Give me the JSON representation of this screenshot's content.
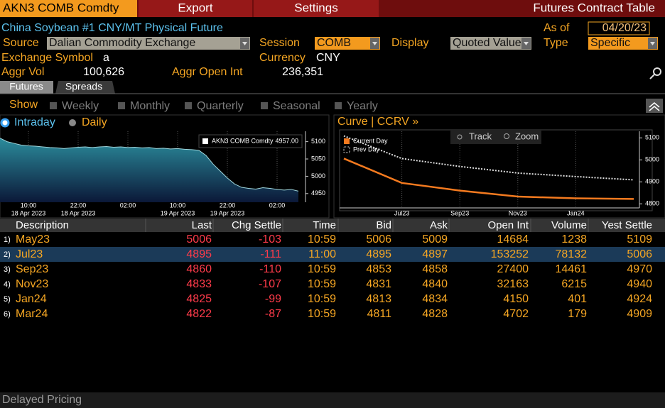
{
  "header": {
    "ticker": "AKN3 COMB Comdty",
    "menu": [
      "Export",
      "Settings"
    ],
    "title": "Futures Contract Table"
  },
  "security": {
    "name": "China Soybean #1 CNY/MT Physical Future",
    "as_of_label": "As of",
    "as_of": "04/20/23"
  },
  "fields": {
    "source_label": "Source",
    "source": "Dalian Commodity Exchange",
    "session_label": "Session",
    "session": "COMB",
    "display_label": "Display",
    "display": "Quoted Value",
    "type_label": "Type",
    "type": "Specific",
    "exchange_symbol_label": "Exchange Symbol",
    "exchange_symbol": "a",
    "currency_label": "Currency",
    "currency": "CNY",
    "aggr_vol_label": "Aggr Vol",
    "aggr_vol": "100,626",
    "aggr_oi_label": "Aggr Open Int",
    "aggr_oi": "236,351"
  },
  "tabs": [
    "Futures",
    "Spreads"
  ],
  "show": {
    "label": "Show",
    "options": [
      "Weekly",
      "Monthly",
      "Quarterly",
      "Seasonal",
      "Yearly"
    ]
  },
  "modes": [
    "Intraday",
    "Daily"
  ],
  "intraday_chart": {
    "type": "area",
    "legend_name": "AKN3 COMB Comdty",
    "legend_value_label": "4957.00",
    "values": [
      5110,
      5100,
      5095,
      5090,
      5088,
      5087,
      5085,
      5083,
      5082,
      5080,
      5082,
      5084,
      5085,
      5083,
      5085,
      5086,
      5084,
      5085,
      5083,
      5084,
      5082,
      5083,
      5080,
      5081,
      5079,
      5080,
      5078,
      5077,
      5075,
      5060,
      5035,
      5015,
      4995,
      4978,
      4968,
      4965,
      4963,
      4967,
      4965,
      4962,
      4960,
      4962,
      4957
    ],
    "ylim": [
      4925,
      5130
    ],
    "yticks": [
      4950,
      5000,
      5050,
      5100
    ],
    "xticks": [
      {
        "value": 4,
        "label": "10:00",
        "date": "18 Apr 2023"
      },
      {
        "value": 11,
        "label": "22:00",
        "date": "18 Apr 2023"
      },
      {
        "value": 18,
        "label": "02:00"
      },
      {
        "value": 25,
        "label": "10:00",
        "date": "19 Apr 2023"
      },
      {
        "value": 32,
        "label": "22:00",
        "date": "19 Apr 2023"
      },
      {
        "value": 39,
        "label": "02:00"
      }
    ]
  },
  "curve_chart": {
    "type": "line",
    "title": "Curve | CCRV »",
    "buttons": [
      "Track",
      "Zoom"
    ],
    "xlim": [
      0,
      5
    ],
    "xticks": [
      {
        "value": 1,
        "label": "Jul23"
      },
      {
        "value": 2,
        "label": "Sep23"
      },
      {
        "value": 3,
        "label": "Nov23"
      },
      {
        "value": 4,
        "label": "Jan24"
      }
    ],
    "ylim": [
      4775,
      5130
    ],
    "yticks": [
      4800,
      4900,
      5000,
      5100
    ],
    "series": [
      {
        "name": "Current Day",
        "color": "#f47a1f",
        "values": [
          5006,
          4895,
          4860,
          4833,
          4825,
          4822
        ]
      },
      {
        "name": "Prev Day",
        "color": "#e0e0e0",
        "values": [
          5109,
          5006,
          4970,
          4940,
          4924,
          4909
        ]
      }
    ]
  },
  "table": {
    "columns": [
      "Description",
      "Last",
      "Chg Settle",
      "Time",
      "Bid",
      "Ask",
      "Open Int",
      "Volume",
      "Yest Settle"
    ],
    "row_labels": [
      "1)",
      "2)",
      "3)",
      "4)",
      "5)",
      "6)"
    ],
    "rows": [
      [
        "May23",
        5006,
        -103,
        "10:59",
        5006,
        5009,
        14684,
        1238,
        5109
      ],
      [
        "Jul23",
        4895,
        -111,
        "11:00",
        4895,
        4897,
        153252,
        78132,
        5006
      ],
      [
        "Sep23",
        4860,
        -110,
        "10:59",
        4853,
        4858,
        27400,
        14461,
        4970
      ],
      [
        "Nov23",
        4833,
        -107,
        "10:59",
        4831,
        4840,
        32163,
        6215,
        4940
      ],
      [
        "Jan24",
        4825,
        -99,
        "10:59",
        4813,
        4834,
        4150,
        401,
        4924
      ],
      [
        "Mar24",
        4822,
        -87,
        "10:59",
        4811,
        4828,
        4702,
        179,
        4909
      ]
    ]
  },
  "footer": "Delayed Pricing"
}
